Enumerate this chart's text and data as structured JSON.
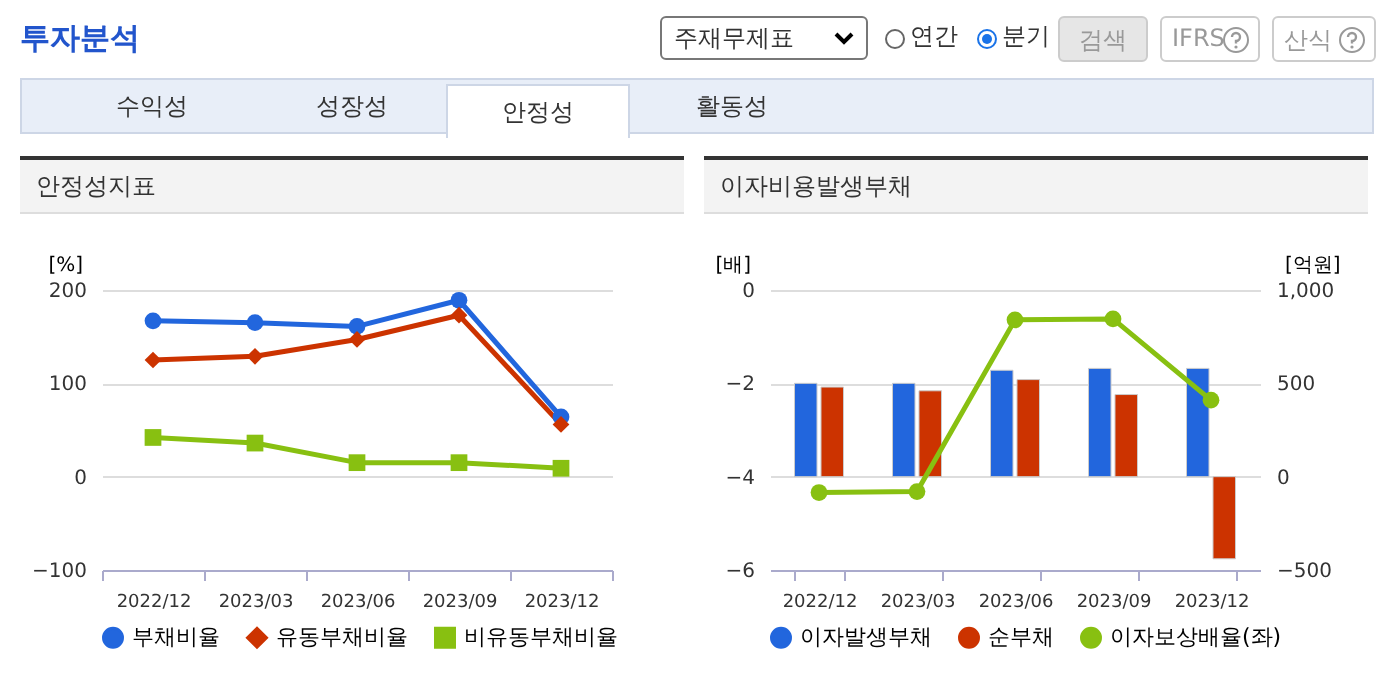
{
  "chart_data": [
    {
      "type": "other",
      "title": "투자분석",
      "annotations": [
        "주재무제표",
        "연간",
        "분기",
        "검색",
        "IFRS",
        "산식",
        "수익성",
        "성장성",
        "안정성",
        "활동성"
      ]
    },
    {
      "type": "line",
      "title": "안정성지표",
      "ylabel": "[%]",
      "categories": [
        "2022/12",
        "2023/03",
        "2023/06",
        "2023/09",
        "2023/12"
      ],
      "ylim": [
        -100,
        200
      ],
      "yticks": [
        -100,
        0,
        100,
        200
      ],
      "grid": "y",
      "legend": "bottom",
      "series": [
        {
          "name": "부채비율",
          "color": "#2266dd",
          "marker": "circle",
          "values": [
            167,
            165,
            161,
            189,
            64
          ]
        },
        {
          "name": "유동부채비율",
          "color": "#cc3300",
          "marker": "diamond",
          "values": [
            125,
            129,
            147,
            173,
            56
          ]
        },
        {
          "name": "비유동부채비율",
          "color": "#88c011",
          "marker": "square",
          "values": [
            42,
            36,
            15,
            15,
            9
          ]
        }
      ]
    },
    {
      "type": "bar",
      "title": "이자비용발생부채",
      "ylabel": "[배]",
      "y2label": "[억원]",
      "categories": [
        "2022/12",
        "2023/03",
        "2023/06",
        "2023/09",
        "2023/12"
      ],
      "ylim": [
        -6,
        0
      ],
      "yticks": [
        -6,
        -4,
        -2,
        0
      ],
      "y2lim": [
        -500,
        1000
      ],
      "y2ticks": [
        -500,
        0,
        500,
        {
          "value": 1000,
          "label": "1,000"
        }
      ],
      "grid": "y",
      "legend": "bottom",
      "series": [
        {
          "name": "이자발생부채",
          "color": "#2266dd",
          "axis": "y2",
          "values": [
            500,
            500,
            570,
            580,
            580
          ]
        },
        {
          "name": "순부채",
          "color": "#cc3300",
          "axis": "y2",
          "values": [
            480,
            460,
            520,
            440,
            -440
          ]
        },
        {
          "name": "이자보상배율(좌)",
          "type": "line",
          "color": "#88c011",
          "marker": "circle",
          "axis": "y",
          "values": [
            -4.34,
            -4.32,
            -0.64,
            -0.62,
            -2.36
          ]
        }
      ]
    }
  ]
}
